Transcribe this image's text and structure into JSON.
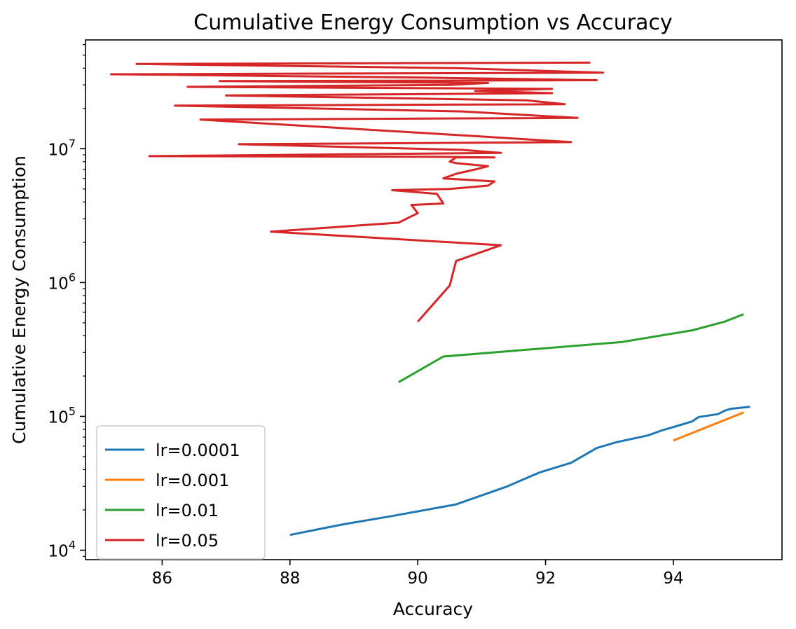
{
  "chart_data": {
    "type": "line",
    "title": "Cumulative Energy Consumption vs Accuracy",
    "xlabel": "Accuracy",
    "ylabel": "Cumulative Energy Consumption",
    "xlim": [
      84.8,
      95.7
    ],
    "ylim": [
      8500,
      65000000
    ],
    "yscale": "log",
    "xticks": [
      86,
      88,
      90,
      92,
      94
    ],
    "yticks": [
      {
        "base": "10",
        "exp": "4",
        "value": 10000
      },
      {
        "base": "10",
        "exp": "5",
        "value": 100000
      },
      {
        "base": "10",
        "exp": "6",
        "value": 1000000
      },
      {
        "base": "10",
        "exp": "7",
        "value": 10000000
      }
    ],
    "grid": false,
    "legend": "lower-left",
    "series": [
      {
        "name": "lr=0.0001",
        "color": "#1f77b4",
        "x": [
          88.0,
          88.8,
          89.6,
          90.6,
          91.4,
          91.9,
          92.4,
          92.8,
          93.1,
          93.6,
          93.8,
          94.1,
          94.3,
          94.4,
          94.7,
          94.8,
          94.9,
          95.2
        ],
        "y": [
          13000,
          15500,
          18000,
          22000,
          30000,
          38000,
          45000,
          58000,
          64000,
          72000,
          78000,
          86000,
          92000,
          99000,
          104000,
          110000,
          114000,
          118000
        ]
      },
      {
        "name": "lr=0.001",
        "color": "#ff7f0e",
        "x": [
          94.0,
          95.1
        ],
        "y": [
          66000,
          107000
        ]
      },
      {
        "name": "lr=0.01",
        "color": "#2ca02c",
        "x": [
          89.7,
          90.4,
          93.2,
          94.3,
          94.8,
          95.1
        ],
        "y": [
          180000,
          280000,
          360000,
          440000,
          510000,
          580000
        ]
      },
      {
        "name": "lr=0.05",
        "color": "#d62728",
        "x": [
          90.0,
          90.5,
          90.6,
          91.3,
          87.7,
          89.7,
          90.0,
          89.9,
          90.4,
          90.3,
          89.6,
          90.5,
          91.1,
          91.2,
          90.4,
          90.6,
          90.9,
          91.1,
          90.6,
          90.5,
          90.6,
          91.2,
          90.3,
          85.8,
          91.3,
          90.7,
          87.2,
          92.4,
          90.8,
          86.6,
          92.5,
          90.7,
          86.2,
          92.3,
          91.7,
          87.0,
          92.1,
          90.9,
          92.1,
          86.4,
          90.5,
          91.1,
          86.9,
          92.8,
          90.1,
          85.2,
          92.9,
          90.6,
          85.6,
          92.7
        ],
        "y": [
          510000,
          950000,
          1450000,
          1900000,
          2400000,
          2800000,
          3300000,
          3800000,
          3900000,
          4600000,
          4900000,
          5000000,
          5300000,
          5700000,
          6000000,
          6500000,
          7000000,
          7400000,
          7800000,
          8000000,
          8600000,
          8600000,
          8700000,
          8800000,
          9300000,
          9800000,
          10800000,
          11200000,
          12500000,
          16500000,
          17000000,
          19000000,
          21000000,
          21500000,
          23000000,
          25000000,
          26000000,
          27000000,
          28000000,
          29000000,
          30000000,
          31000000,
          32000000,
          32500000,
          34000000,
          36000000,
          37000000,
          40000000,
          43000000,
          44000000
        ]
      }
    ]
  }
}
